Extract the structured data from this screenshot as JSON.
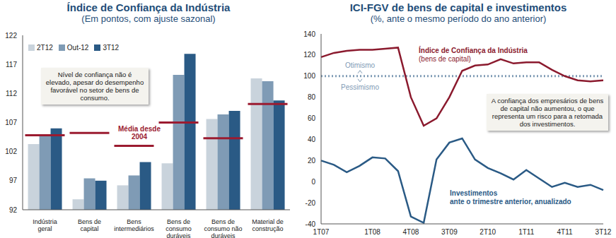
{
  "chart_data": [
    {
      "type": "bar",
      "title": "Índice de Confiança da Indústria",
      "subtitle": "(Em pontos, com ajuste sazonal)",
      "categories": [
        "Indústria geral",
        "Bens de capital",
        "Bens intermediários",
        "Bens de consumo duráveis",
        "Bens de consumo não duráveis",
        "Material de construção"
      ],
      "series": [
        {
          "name": "2T12",
          "color": "#c9d3dc",
          "values": [
            103.3,
            93.8,
            96.2,
            100.0,
            107.6,
            114.6
          ]
        },
        {
          "name": "Out-12",
          "color": "#7f9bb5",
          "values": [
            104.8,
            97.4,
            97.9,
            115.2,
            108.4,
            114.1
          ]
        },
        {
          "name": "3T12",
          "color": "#2a5a85",
          "values": [
            106.0,
            97.0,
            100.2,
            118.8,
            109.0,
            110.8
          ]
        }
      ],
      "average": {
        "name": "Média desde 2004",
        "color": "#9b1b30",
        "values": [
          104.8,
          105.2,
          103.0,
          107.0,
          104.3,
          110.2
        ]
      },
      "annotation": "Nível de confiança não é elevado, apesar do desempenho favorável no setor de bens de consumo.",
      "ylim": [
        92,
        122
      ],
      "yticks": [
        92,
        97,
        102,
        107,
        112,
        117,
        122
      ],
      "legend": "upper left",
      "grid": false
    },
    {
      "type": "line",
      "title": "ICI-FGV de bens de capital e investimentos",
      "subtitle": "(%, ante o mesmo período do ano anterior)",
      "categories": [
        "1T07",
        null,
        null,
        null,
        "1T08",
        null,
        null,
        "4T08",
        null,
        null,
        "3T09",
        null,
        null,
        "2T10",
        null,
        null,
        "1T11",
        null,
        null,
        "4T11",
        null,
        null,
        "3T12"
      ],
      "series": [
        {
          "name": "Índice de Confiança da Indústria",
          "note": "(bens de capital)",
          "color": "#8b1a2e",
          "values": [
            118,
            122,
            124,
            125,
            125,
            126,
            127,
            80,
            53,
            60,
            80,
            105,
            110,
            111,
            116,
            112,
            113,
            113,
            106,
            100,
            96,
            95,
            96
          ]
        },
        {
          "name": "Investimentos",
          "note": "ante o trimestre anterior, anualizado",
          "color": "#2a5a85",
          "values": [
            20,
            16,
            9,
            15,
            23,
            22,
            10,
            -33,
            -39,
            21,
            37,
            41,
            21,
            13,
            8,
            2,
            11,
            3,
            -5,
            -1,
            -5,
            -3,
            -8
          ]
        }
      ],
      "threshold": {
        "value": 100,
        "above": "Otimismo",
        "below": "Pessimismo",
        "color": "#7f9bb5"
      },
      "annotation": "A confiança dos empresários de bens de capital não aumentou, o que representa um risco para a retomada dos investimentos.",
      "ylim": [
        -40,
        140
      ],
      "yticks": [
        -40,
        -20,
        0,
        20,
        40,
        60,
        80,
        100,
        120,
        140
      ],
      "grid": false
    }
  ]
}
